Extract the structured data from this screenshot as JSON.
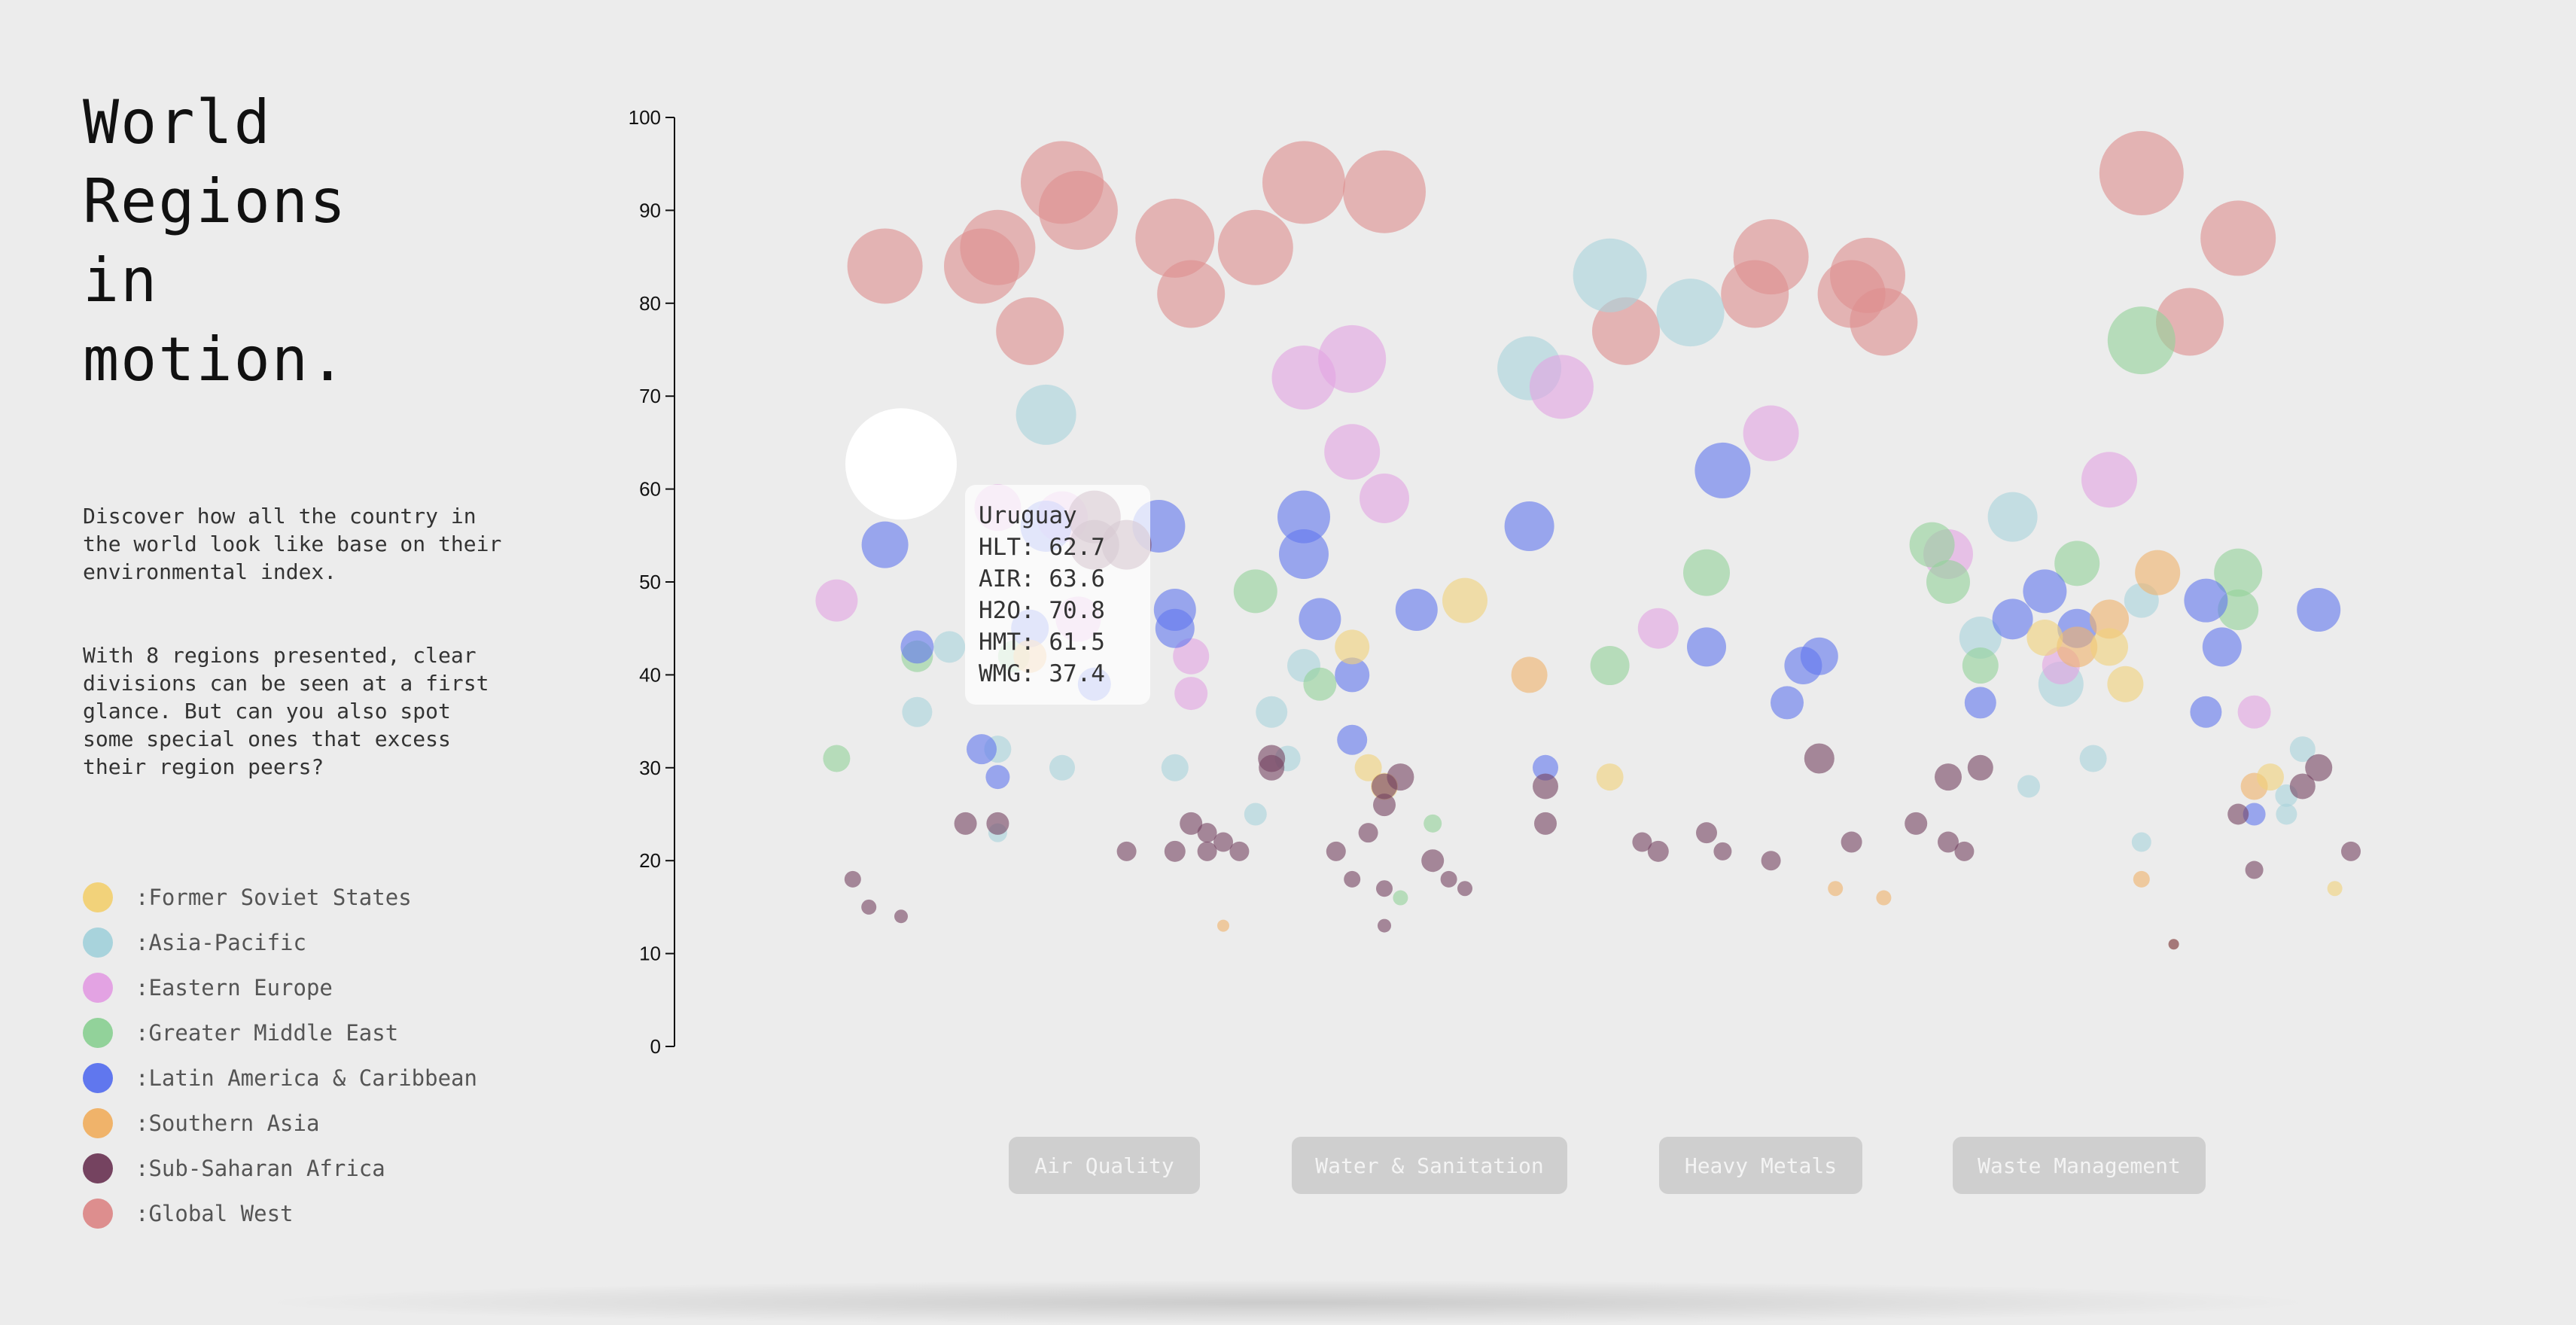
{
  "title": "World Regions in motion.",
  "description": [
    "Discover how all the country in the world look like base on their environmental index.",
    "With 8 regions presented, clear divisions can be seen at a first glance. But can you also spot some special ones that excess their region peers?"
  ],
  "legend": [
    {
      "label": ":Former Soviet States",
      "color": "#f2d27a"
    },
    {
      "label": ":Asia-Pacific",
      "color": "#a8d3dc"
    },
    {
      "label": ":Eastern Europe",
      "color": "#e3a3e3"
    },
    {
      "label": ":Greater Middle East",
      "color": "#92d29a"
    },
    {
      "label": ":Latin America & Caribbean",
      "color": "#6077ee"
    },
    {
      "label": ":Southern Asia",
      "color": "#f0b36a"
    },
    {
      "label": ":Sub-Saharan Africa",
      "color": "#754360"
    },
    {
      "label": ":Global West",
      "color": "#dd8e8e"
    }
  ],
  "tooltip": {
    "name": "Uruguay",
    "lines": [
      "HLT: 62.7",
      "AIR: 63.6",
      "H2O: 70.8",
      "HMT: 61.5",
      "WMG: 37.4"
    ]
  },
  "buttons": [
    "Air Quality",
    "Water & Sanitation",
    "Heavy Metals",
    "Waste Management"
  ],
  "chart_data": {
    "type": "scatter",
    "title": "",
    "xlabel": "",
    "ylabel": "",
    "ylim": [
      0,
      100
    ],
    "yticks": [
      0,
      10,
      20,
      30,
      40,
      50,
      60,
      70,
      80,
      90,
      100
    ],
    "xlim": [
      0,
      100
    ],
    "grid": false,
    "size_encoding": "bubble radius scales with index value",
    "highlighted": {
      "name": "Uruguay",
      "x": 5,
      "y": 62.7,
      "r": 74,
      "color": "#ffffff"
    },
    "series": [
      {
        "name": "Global West",
        "color": "#dd8e8e",
        "points": [
          [
            4,
            84,
            100
          ],
          [
            10,
            84,
            100
          ],
          [
            11,
            86,
            100
          ],
          [
            15,
            93,
            110
          ],
          [
            16,
            90,
            105
          ],
          [
            13,
            77,
            90
          ],
          [
            22,
            87,
            105
          ],
          [
            23,
            81,
            90
          ],
          [
            27,
            86,
            100
          ],
          [
            30,
            93,
            110
          ],
          [
            35,
            92,
            110
          ],
          [
            50,
            77,
            90
          ],
          [
            59,
            85,
            100
          ],
          [
            58,
            81,
            90
          ],
          [
            65,
            83,
            100
          ],
          [
            64,
            81,
            90
          ],
          [
            66,
            78,
            90
          ],
          [
            82,
            94,
            112
          ],
          [
            88,
            87,
            100
          ],
          [
            85,
            78,
            90
          ]
        ]
      },
      {
        "name": "Asia-Pacific",
        "color": "#a8d3dc",
        "points": [
          [
            14,
            68,
            80
          ],
          [
            44,
            73,
            85
          ],
          [
            49,
            83,
            98
          ],
          [
            54,
            79,
            90
          ],
          [
            8,
            43,
            42
          ],
          [
            6,
            36,
            40
          ],
          [
            11,
            32,
            36
          ],
          [
            11,
            23,
            25
          ],
          [
            15,
            30,
            34
          ],
          [
            22,
            30,
            36
          ],
          [
            28,
            36,
            42
          ],
          [
            29,
            31,
            34
          ],
          [
            27,
            25,
            30
          ],
          [
            30,
            41,
            44
          ],
          [
            74,
            57,
            66
          ],
          [
            72,
            44,
            56
          ],
          [
            77,
            39,
            60
          ],
          [
            75,
            28,
            30
          ],
          [
            79,
            31,
            36
          ],
          [
            82,
            48,
            46
          ],
          [
            92,
            32,
            34
          ],
          [
            91,
            27,
            30
          ],
          [
            82,
            22,
            26
          ],
          [
            91,
            25,
            28
          ]
        ]
      },
      {
        "name": "Eastern Europe",
        "color": "#e3a3e3",
        "points": [
          [
            1,
            48,
            56
          ],
          [
            11,
            58,
            62
          ],
          [
            15,
            57,
            68
          ],
          [
            30,
            72,
            85
          ],
          [
            33,
            74,
            90
          ],
          [
            33,
            64,
            74
          ],
          [
            35,
            59,
            66
          ],
          [
            46,
            71,
            85
          ],
          [
            59,
            66,
            74
          ],
          [
            16,
            46,
            60
          ],
          [
            23,
            42,
            48
          ],
          [
            23,
            38,
            44
          ],
          [
            70,
            53,
            66
          ],
          [
            80,
            61,
            74
          ],
          [
            52,
            45,
            54
          ],
          [
            89,
            36,
            44
          ],
          [
            77,
            41,
            50
          ]
        ]
      },
      {
        "name": "Greater Middle East",
        "color": "#92d29a",
        "points": [
          [
            1,
            31,
            36
          ],
          [
            6,
            42,
            42
          ],
          [
            12,
            42,
            42
          ],
          [
            27,
            49,
            58
          ],
          [
            31,
            39,
            44
          ],
          [
            49,
            41,
            52
          ],
          [
            55,
            51,
            62
          ],
          [
            70,
            50,
            58
          ],
          [
            72,
            41,
            48
          ],
          [
            78,
            52,
            60
          ],
          [
            82,
            76,
            90
          ],
          [
            88,
            51,
            64
          ],
          [
            88,
            47,
            54
          ],
          [
            36,
            16,
            20
          ],
          [
            38,
            24,
            24
          ],
          [
            69,
            54,
            60
          ]
        ]
      },
      {
        "name": "Latin America & Caribbean",
        "color": "#6077ee",
        "points": [
          [
            4,
            54,
            62
          ],
          [
            6,
            43,
            44
          ],
          [
            13,
            45,
            50
          ],
          [
            14,
            56,
            68
          ],
          [
            21,
            56,
            70
          ],
          [
            22,
            47,
            56
          ],
          [
            22,
            45,
            52
          ],
          [
            17,
            39,
            44
          ],
          [
            11,
            29,
            32
          ],
          [
            10,
            32,
            40
          ],
          [
            30,
            57,
            70
          ],
          [
            30,
            53,
            66
          ],
          [
            31,
            46,
            56
          ],
          [
            33,
            40,
            46
          ],
          [
            33,
            33,
            40
          ],
          [
            37,
            47,
            56
          ],
          [
            44,
            56,
            66
          ],
          [
            45,
            30,
            34
          ],
          [
            56,
            62,
            74
          ],
          [
            55,
            43,
            52
          ],
          [
            61,
            41,
            50
          ],
          [
            60,
            37,
            44
          ],
          [
            62,
            42,
            50
          ],
          [
            72,
            37,
            42
          ],
          [
            74,
            46,
            54
          ],
          [
            76,
            49,
            58
          ],
          [
            78,
            45,
            52
          ],
          [
            86,
            48,
            58
          ],
          [
            87,
            43,
            52
          ],
          [
            93,
            47,
            58
          ],
          [
            86,
            36,
            42
          ],
          [
            89,
            25,
            30
          ]
        ]
      },
      {
        "name": "Southern Asia",
        "color": "#f0b36a",
        "points": [
          [
            13,
            42,
            44
          ],
          [
            25,
            13,
            16
          ],
          [
            44,
            40,
            48
          ],
          [
            63,
            17,
            20
          ],
          [
            66,
            16,
            20
          ],
          [
            78,
            43,
            54
          ],
          [
            80,
            46,
            52
          ],
          [
            83,
            51,
            60
          ],
          [
            82,
            18,
            22
          ],
          [
            89,
            28,
            36
          ],
          [
            84,
            11,
            14
          ]
        ]
      },
      {
        "name": "Former Soviet States",
        "color": "#f2d27a",
        "points": [
          [
            33,
            43,
            46
          ],
          [
            34,
            30,
            36
          ],
          [
            35,
            28,
            36
          ],
          [
            40,
            48,
            60
          ],
          [
            49,
            29,
            36
          ],
          [
            76,
            44,
            48
          ],
          [
            80,
            43,
            50
          ],
          [
            81,
            39,
            48
          ],
          [
            90,
            29,
            36
          ],
          [
            94,
            17,
            20
          ]
        ]
      },
      {
        "name": "Sub-Saharan Africa",
        "color": "#754360",
        "points": [
          [
            17,
            57,
            70
          ],
          [
            17,
            54,
            66
          ],
          [
            19,
            54,
            66
          ],
          [
            2,
            18,
            22
          ],
          [
            3,
            15,
            20
          ],
          [
            5,
            14,
            18
          ],
          [
            9,
            24,
            30
          ],
          [
            11,
            24,
            30
          ],
          [
            19,
            21,
            26
          ],
          [
            23,
            24,
            30
          ],
          [
            24,
            21,
            26
          ],
          [
            24,
            23,
            26
          ],
          [
            25,
            22,
            26
          ],
          [
            26,
            21,
            26
          ],
          [
            22,
            21,
            28
          ],
          [
            28,
            31,
            36
          ],
          [
            28,
            30,
            34
          ],
          [
            34,
            23,
            26
          ],
          [
            35,
            28,
            34
          ],
          [
            35,
            26,
            30
          ],
          [
            36,
            29,
            36
          ],
          [
            38,
            20,
            30
          ],
          [
            32,
            21,
            26
          ],
          [
            33,
            18,
            22
          ],
          [
            35,
            17,
            22
          ],
          [
            35,
            13,
            18
          ],
          [
            39,
            18,
            22
          ],
          [
            40,
            17,
            20
          ],
          [
            45,
            28,
            34
          ],
          [
            45,
            24,
            30
          ],
          [
            51,
            22,
            26
          ],
          [
            52,
            21,
            28
          ],
          [
            55,
            23,
            28
          ],
          [
            56,
            21,
            24
          ],
          [
            59,
            20,
            26
          ],
          [
            62,
            31,
            40
          ],
          [
            64,
            22,
            28
          ],
          [
            68,
            24,
            30
          ],
          [
            70,
            22,
            28
          ],
          [
            70,
            29,
            36
          ],
          [
            71,
            21,
            26
          ],
          [
            72,
            30,
            34
          ],
          [
            88,
            25,
            28
          ],
          [
            89,
            19,
            24
          ],
          [
            92,
            28,
            34
          ],
          [
            93,
            30,
            36
          ],
          [
            95,
            21,
            26
          ],
          [
            84,
            11,
            14
          ]
        ]
      }
    ]
  }
}
